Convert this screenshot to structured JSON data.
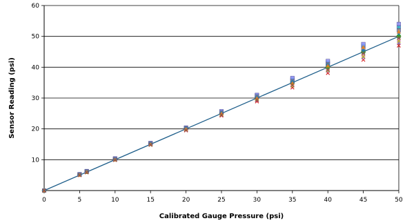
{
  "chart_data": {
    "type": "scatter",
    "xlabel": "Calibrated Gauge Pressure (psi)",
    "ylabel": "Sensor Reading (psi)",
    "xlim": [
      0,
      50
    ],
    "ylim": [
      0,
      60
    ],
    "x_ticks": [
      0,
      5,
      10,
      15,
      20,
      25,
      30,
      35,
      40,
      45,
      50
    ],
    "y_ticks": [
      10,
      20,
      30,
      40,
      50,
      60
    ],
    "grid": "horizontal",
    "legend": "none",
    "reference_line": {
      "from": [
        0,
        0
      ],
      "to": [
        50,
        50
      ],
      "color": "#1f5f8b"
    },
    "series": [
      {
        "color": "#d62728",
        "marker": "x",
        "x": [
          0,
          5,
          6,
          10,
          15,
          20,
          25,
          30,
          35,
          40,
          45,
          50
        ],
        "y": [
          0,
          5.0,
          5.9,
          9.9,
          14.9,
          19.5,
          24.3,
          28.9,
          33.4,
          38.1,
          42.4,
          47.0
        ]
      },
      {
        "color": "#9467bd",
        "marker": "x",
        "x": [
          0,
          5,
          6,
          10,
          15,
          20,
          25,
          30,
          35,
          40,
          45,
          50
        ],
        "y": [
          0,
          5.1,
          6.0,
          10.0,
          15.0,
          19.7,
          24.6,
          29.3,
          34.0,
          38.8,
          43.2,
          48.0
        ]
      },
      {
        "color": "#e377c2",
        "marker": "x",
        "x": [
          0,
          5,
          6,
          10,
          15,
          20,
          25,
          30,
          35,
          40,
          45,
          50
        ],
        "y": [
          0,
          5.0,
          6.0,
          10.0,
          15.0,
          19.8,
          24.8,
          29.6,
          34.5,
          39.5,
          44.0,
          49.0
        ]
      },
      {
        "color": "#2ca02c",
        "marker": "circle",
        "x": [
          0,
          5,
          6,
          10,
          15,
          20,
          25,
          30,
          35,
          40,
          45,
          50
        ],
        "y": [
          0,
          5.2,
          6.1,
          10.2,
          15.2,
          20.1,
          25.0,
          30.1,
          35.0,
          40.2,
          45.0,
          50.0
        ]
      },
      {
        "color": "#bcbd22",
        "marker": "x",
        "x": [
          0,
          5,
          6,
          10,
          15,
          20,
          25,
          30,
          35,
          40,
          45,
          50
        ],
        "y": [
          0,
          5.1,
          6.1,
          10.1,
          15.1,
          20.0,
          24.9,
          29.8,
          34.0,
          39.0,
          43.5,
          48.5
        ]
      },
      {
        "color": "#17becf",
        "marker": "square",
        "x": [
          0,
          5,
          6,
          10,
          15,
          20,
          25,
          30,
          35,
          40,
          45,
          50
        ],
        "y": [
          0,
          5.2,
          6.2,
          10.3,
          15.3,
          20.3,
          25.5,
          30.8,
          36.0,
          41.5,
          47.0,
          53.0
        ]
      },
      {
        "color": "#8c8cff",
        "marker": "square",
        "x": [
          0,
          5,
          6,
          10,
          15,
          20,
          25,
          30,
          35,
          40,
          45,
          50
        ],
        "y": [
          0,
          5.3,
          6.3,
          10.4,
          15.4,
          20.4,
          25.7,
          31.0,
          36.5,
          42.0,
          47.5,
          54.0
        ]
      },
      {
        "color": "#7f7f7f",
        "marker": "square",
        "x": [
          0,
          5,
          6,
          10,
          15,
          20,
          25,
          30,
          35,
          40,
          45,
          50
        ],
        "y": [
          0,
          5.2,
          6.2,
          10.2,
          15.2,
          20.2,
          25.3,
          30.5,
          35.5,
          41.0,
          46.0,
          52.0
        ]
      },
      {
        "color": "#1f77b4",
        "marker": "diamond",
        "x": [
          0,
          5,
          6,
          10,
          15,
          20,
          25,
          30,
          35,
          40,
          45,
          50
        ],
        "y": [
          0,
          5.1,
          6.1,
          10.1,
          15.2,
          20.2,
          25.2,
          30.3,
          35.3,
          40.8,
          45.5,
          51.0
        ]
      },
      {
        "color": "#ff7f0e",
        "marker": "triangle",
        "x": [
          0,
          5,
          6,
          10,
          15,
          20,
          25,
          30,
          35,
          40,
          45,
          50
        ],
        "y": [
          0,
          5.0,
          6.0,
          10.0,
          15.0,
          20.0,
          25.0,
          30.0,
          34.8,
          40.5,
          46.5,
          51.5
        ]
      },
      {
        "color": "#8c564b",
        "marker": "x",
        "x": [
          0,
          5,
          6,
          10,
          15,
          20,
          25,
          30,
          35,
          40,
          45,
          50
        ],
        "y": [
          0,
          5.0,
          5.9,
          9.9,
          14.8,
          19.6,
          24.5,
          29.4,
          34.2,
          39.2,
          44.5,
          49.5
        ]
      }
    ]
  }
}
